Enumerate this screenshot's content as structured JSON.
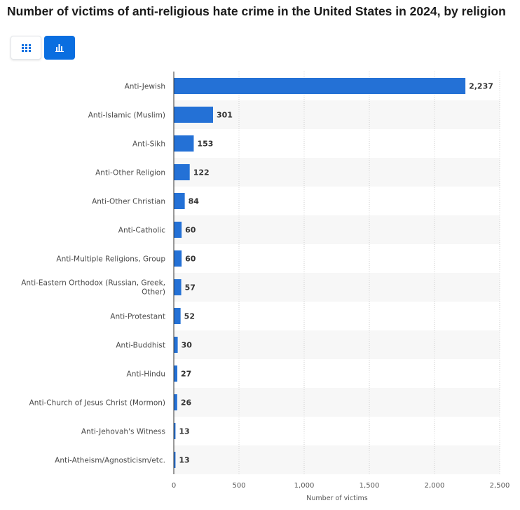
{
  "title": "Number of victims of anti-religious hate crime in the United States in 2024, by religion",
  "view_toggle": {
    "table_icon": "grid-icon",
    "chart_icon": "bar-chart-icon",
    "active": "chart",
    "accent_color": "#0a6ee0"
  },
  "chart_data": {
    "type": "bar",
    "orientation": "horizontal",
    "categories": [
      "Anti-Jewish",
      "Anti-Islamic (Muslim)",
      "Anti-Sikh",
      "Anti-Other Religion",
      "Anti-Other Christian",
      "Anti-Catholic",
      "Anti-Multiple Religions, Group",
      "Anti-Eastern Orthodox (Russian, Greek, Other)",
      "Anti-Protestant",
      "Anti-Buddhist",
      "Anti-Hindu",
      "Anti-Church of Jesus Christ (Mormon)",
      "Anti-Jehovah's Witness",
      "Anti-Atheism/Agnosticism/etc."
    ],
    "values": [
      2237,
      301,
      153,
      122,
      84,
      60,
      60,
      57,
      52,
      30,
      27,
      26,
      13,
      13
    ],
    "value_labels": [
      "2,237",
      "301",
      "153",
      "122",
      "84",
      "60",
      "60",
      "57",
      "52",
      "30",
      "27",
      "26",
      "13",
      "13"
    ],
    "xlabel": "Number of victims",
    "xlim": [
      0,
      2500
    ],
    "xticks": [
      0,
      500,
      1000,
      1500,
      2000,
      2500
    ],
    "xtick_labels": [
      "0",
      "500",
      "1,000",
      "1,500",
      "2,000",
      "2,500"
    ],
    "bar_color": "#2471d6",
    "grid": true
  }
}
